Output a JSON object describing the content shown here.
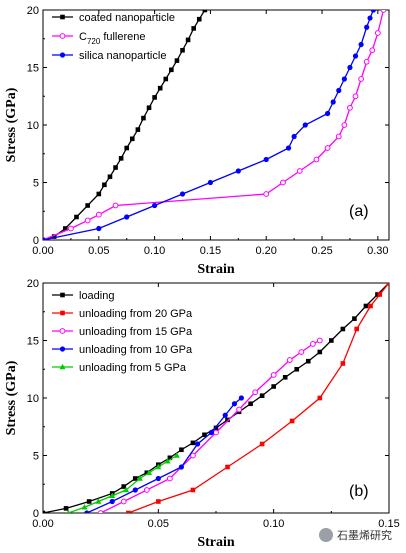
{
  "chart_data": [
    {
      "type": "line",
      "panel_label": "(a)",
      "xlabel": "Strain",
      "ylabel": "Stress (GPa)",
      "xlim": [
        0.0,
        0.31
      ],
      "ylim": [
        0,
        20
      ],
      "xticks": [
        "0.00",
        "0.05",
        "0.10",
        "0.15",
        "0.20",
        "0.25",
        "0.30"
      ],
      "yticks": [
        "0",
        "5",
        "10",
        "15",
        "20"
      ],
      "legend_position": "top-left",
      "legend_labels": [
        "coated nanoparticle",
        "C",
        "fullerene",
        "silica nanoparticle"
      ],
      "legend_sub": "720",
      "series": [
        {
          "name": "coated nanoparticle",
          "color": "#000000",
          "marker": "square-filled",
          "x": [
            0.0,
            0.01,
            0.02,
            0.03,
            0.04,
            0.05,
            0.055,
            0.06,
            0.065,
            0.07,
            0.075,
            0.08,
            0.085,
            0.09,
            0.095,
            0.1,
            0.105,
            0.11,
            0.115,
            0.12,
            0.125,
            0.13,
            0.135,
            0.14,
            0.145,
            0.15
          ],
          "y": [
            0.0,
            0.3,
            1.0,
            2.0,
            3.0,
            4.0,
            4.8,
            5.5,
            6.3,
            7.1,
            8.0,
            8.8,
            9.6,
            10.6,
            11.5,
            12.4,
            13.2,
            14.0,
            14.8,
            15.6,
            16.5,
            17.4,
            18.4,
            19.2,
            20.0,
            21.0
          ]
        },
        {
          "name": "C720 fullerene",
          "color": "#ff00ff",
          "marker": "circle-open",
          "x": [
            0.0,
            0.025,
            0.04,
            0.05,
            0.065,
            0.2,
            0.215,
            0.23,
            0.245,
            0.255,
            0.265,
            0.27,
            0.275,
            0.28,
            0.285,
            0.29,
            0.295,
            0.3,
            0.305
          ],
          "y": [
            0.0,
            1.0,
            1.7,
            2.2,
            3.0,
            4.0,
            5.0,
            6.0,
            7.0,
            8.0,
            9.0,
            10.0,
            11.5,
            12.5,
            14.0,
            15.5,
            16.5,
            18.0,
            20.0
          ]
        },
        {
          "name": "silica nanoparticle",
          "color": "#0000ff",
          "marker": "circle-filled",
          "x": [
            0.0,
            0.05,
            0.075,
            0.1,
            0.125,
            0.15,
            0.175,
            0.2,
            0.22,
            0.225,
            0.235,
            0.255,
            0.26,
            0.265,
            0.27,
            0.275,
            0.28,
            0.285,
            0.29,
            0.293,
            0.296
          ],
          "y": [
            0.0,
            1.0,
            2.0,
            3.0,
            4.0,
            5.0,
            6.0,
            7.0,
            8.0,
            9.0,
            10.0,
            11.0,
            12.0,
            13.0,
            14.0,
            15.0,
            16.0,
            17.0,
            18.5,
            19.3,
            20.0
          ]
        }
      ]
    },
    {
      "type": "line",
      "panel_label": "(b)",
      "xlabel": "Strain",
      "ylabel": "Stress (GPa)",
      "xlim": [
        0.0,
        0.15
      ],
      "ylim": [
        0,
        20
      ],
      "xticks": [
        "0.00",
        "0.05",
        "0.10",
        "0.15"
      ],
      "yticks": [
        "0",
        "5",
        "10",
        "15",
        "20"
      ],
      "legend_position": "top-left",
      "series": [
        {
          "name": "loading",
          "color": "#000000",
          "marker": "square-filled",
          "x": [
            0.0,
            0.01,
            0.02,
            0.03,
            0.035,
            0.04,
            0.045,
            0.05,
            0.055,
            0.06,
            0.065,
            0.07,
            0.075,
            0.08,
            0.085,
            0.09,
            0.095,
            0.1,
            0.105,
            0.11,
            0.115,
            0.12,
            0.125,
            0.13,
            0.135,
            0.14,
            0.145,
            0.15
          ],
          "y": [
            0.0,
            0.4,
            1.0,
            1.7,
            2.3,
            3.0,
            3.5,
            4.2,
            4.8,
            5.5,
            6.1,
            6.8,
            7.4,
            8.1,
            8.8,
            9.5,
            10.2,
            11.0,
            11.8,
            12.5,
            13.2,
            14.0,
            15.0,
            16.0,
            16.9,
            18.0,
            19.0,
            20.0
          ]
        },
        {
          "name": "unloading from 20 GPa",
          "color": "#ff0000",
          "marker": "square-filled",
          "x": [
            0.037,
            0.05,
            0.065,
            0.08,
            0.095,
            0.108,
            0.12,
            0.13,
            0.136,
            0.142,
            0.146,
            0.15
          ],
          "y": [
            0.0,
            1.0,
            2.0,
            4.0,
            6.0,
            8.0,
            10.0,
            13.0,
            16.0,
            18.0,
            19.0,
            20.0
          ]
        },
        {
          "name": "unloading from 15 GPa",
          "color": "#ff00ff",
          "marker": "circle-open",
          "x": [
            0.025,
            0.035,
            0.045,
            0.055,
            0.065,
            0.075,
            0.085,
            0.092,
            0.1,
            0.107,
            0.112,
            0.117,
            0.12
          ],
          "y": [
            0.0,
            1.0,
            2.0,
            3.0,
            5.0,
            7.0,
            9.0,
            10.5,
            12.0,
            13.3,
            14.0,
            14.7,
            15.0
          ]
        },
        {
          "name": "unloading from 10 GPa",
          "color": "#0000ff",
          "marker": "circle-filled",
          "x": [
            0.019,
            0.03,
            0.04,
            0.05,
            0.06,
            0.067,
            0.073,
            0.079,
            0.083,
            0.086
          ],
          "y": [
            0.0,
            1.0,
            2.0,
            3.0,
            4.0,
            6.0,
            7.0,
            8.5,
            9.5,
            10.0
          ]
        },
        {
          "name": "unloading from 5 GPa",
          "color": "#00cc00",
          "marker": "triangle-filled",
          "x": [
            0.011,
            0.018,
            0.024,
            0.03,
            0.036,
            0.042,
            0.046,
            0.05,
            0.054,
            0.058
          ],
          "y": [
            0.0,
            0.5,
            1.0,
            1.5,
            2.0,
            3.0,
            3.5,
            4.0,
            4.5,
            5.0
          ]
        }
      ]
    }
  ],
  "watermark": "石墨烯研究"
}
